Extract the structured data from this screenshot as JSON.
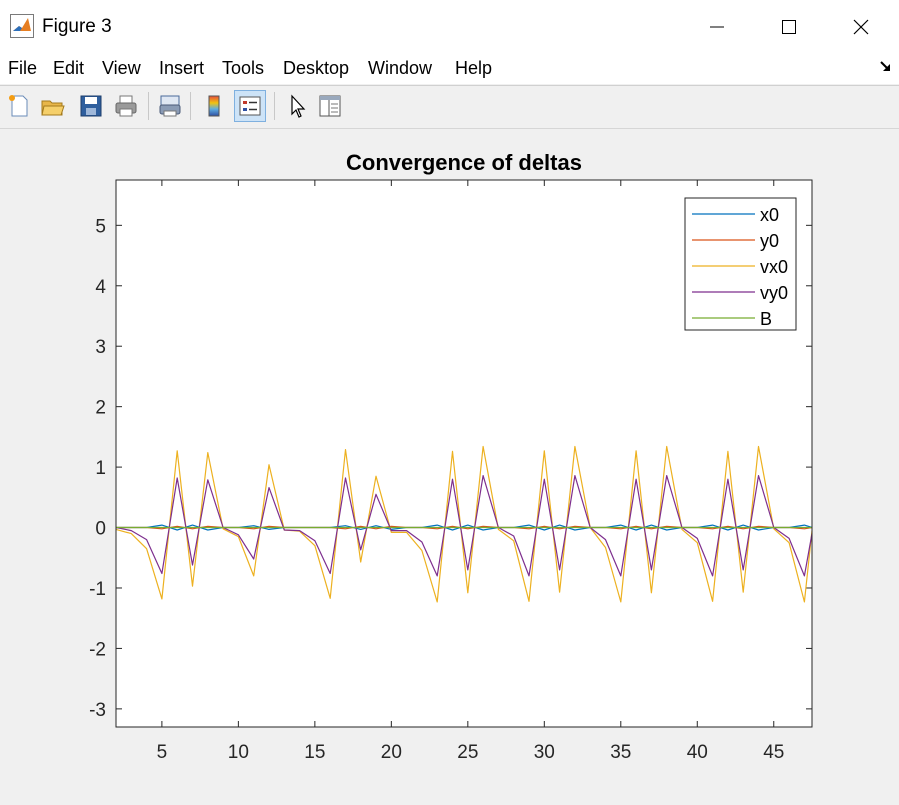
{
  "window": {
    "title": "Figure 3",
    "controls": {
      "minimize": "minimize-icon",
      "maximize": "maximize-icon",
      "close": "close-icon"
    }
  },
  "menu": {
    "items": [
      {
        "label": "File"
      },
      {
        "label": "Edit"
      },
      {
        "label": "View"
      },
      {
        "label": "Insert"
      },
      {
        "label": "Tools"
      },
      {
        "label": "Desktop"
      },
      {
        "label": "Window"
      },
      {
        "label": "Help"
      }
    ]
  },
  "toolbar": {
    "buttons": [
      {
        "icon": "new-figure-icon"
      },
      {
        "icon": "open-file-icon"
      },
      {
        "icon": "save-icon"
      },
      {
        "icon": "print-icon"
      },
      {
        "icon": "link-plot-icon"
      },
      {
        "icon": "colorbar-icon"
      },
      {
        "icon": "legend-icon",
        "active": true
      },
      {
        "icon": "edit-plot-icon"
      },
      {
        "icon": "property-inspector-icon"
      }
    ]
  },
  "chart_data": {
    "type": "line",
    "title": "Convergence of deltas",
    "xlabel": "",
    "ylabel": "",
    "xlim": [
      2,
      47.5
    ],
    "ylim": [
      -3.3,
      5.75
    ],
    "xticks": [
      5,
      10,
      15,
      20,
      25,
      30,
      35,
      40,
      45
    ],
    "yticks": [
      -3,
      -2,
      -1,
      0,
      1,
      2,
      3,
      4,
      5
    ],
    "grid": false,
    "legend_position": "top-right",
    "x": [
      2,
      3,
      4,
      5,
      6,
      7,
      8,
      9,
      10,
      11,
      12,
      13,
      14,
      15,
      16,
      17,
      18,
      19,
      20,
      21,
      22,
      23,
      24,
      25,
      26,
      27,
      28,
      29,
      30,
      31,
      32,
      33,
      34,
      35,
      36,
      37,
      38,
      39,
      40,
      41,
      42,
      43,
      44,
      45,
      46,
      47,
      47.5
    ],
    "series": [
      {
        "name": "x0",
        "color": "#0072bd",
        "values": [
          0,
          0,
          0,
          0.04,
          -0.04,
          0.04,
          -0.04,
          0,
          0,
          0.03,
          -0.03,
          0,
          0,
          0,
          0,
          0.03,
          -0.03,
          0.03,
          -0.03,
          0,
          0,
          0.04,
          -0.04,
          0.04,
          -0.04,
          0,
          0,
          0.04,
          -0.04,
          0.04,
          -0.04,
          0,
          0,
          0.04,
          -0.04,
          0.04,
          -0.04,
          0,
          0,
          0.04,
          -0.04,
          0.04,
          -0.04,
          0,
          0,
          0.04,
          0
        ]
      },
      {
        "name": "y0",
        "color": "#d95319",
        "values": [
          0,
          0,
          0,
          -0.02,
          0.02,
          -0.02,
          0.02,
          0,
          0,
          -0.02,
          0.02,
          0,
          0,
          0,
          0,
          -0.02,
          0.02,
          -0.02,
          0.02,
          0,
          0,
          -0.02,
          0.02,
          -0.02,
          0.02,
          0,
          0,
          -0.02,
          0.02,
          -0.02,
          0.02,
          0,
          0,
          -0.02,
          0.02,
          -0.02,
          0.02,
          0,
          0,
          -0.02,
          0.02,
          -0.02,
          0.02,
          0,
          0,
          -0.02,
          0
        ]
      },
      {
        "name": "vx0",
        "color": "#edb120",
        "values": [
          -0.03,
          -0.1,
          -0.35,
          -1.18,
          1.27,
          -0.97,
          1.24,
          -0.02,
          -0.15,
          -0.8,
          1.04,
          -0.04,
          -0.06,
          -0.3,
          -1.17,
          1.29,
          -0.57,
          0.85,
          -0.08,
          -0.08,
          -0.38,
          -1.23,
          1.26,
          -1.08,
          1.34,
          -0.03,
          -0.22,
          -1.22,
          1.27,
          -1.07,
          1.34,
          0,
          -0.33,
          -1.23,
          1.27,
          -1.08,
          1.34,
          -0.03,
          -0.25,
          -1.22,
          1.26,
          -1.07,
          1.34,
          -0.02,
          -0.25,
          -1.23,
          -0.05
        ]
      },
      {
        "name": "vy0",
        "color": "#7e2f8e",
        "values": [
          0,
          -0.05,
          -0.2,
          -0.76,
          0.82,
          -0.62,
          0.79,
          0,
          -0.12,
          -0.52,
          0.66,
          -0.04,
          -0.05,
          -0.22,
          -0.76,
          0.82,
          -0.37,
          0.55,
          -0.05,
          -0.05,
          -0.24,
          -0.8,
          0.8,
          -0.7,
          0.86,
          0,
          -0.14,
          -0.8,
          0.8,
          -0.7,
          0.86,
          0,
          -0.2,
          -0.8,
          0.8,
          -0.7,
          0.86,
          0,
          -0.18,
          -0.8,
          0.8,
          -0.7,
          0.86,
          0,
          -0.18,
          -0.8,
          -0.1
        ]
      },
      {
        "name": "B",
        "color": "#77ac30",
        "values": [
          0,
          0,
          0,
          0,
          0,
          0,
          0,
          0,
          0,
          0,
          0,
          0,
          0,
          0,
          0,
          0,
          0,
          0,
          0,
          0,
          0,
          0,
          0,
          0,
          0,
          0,
          0,
          0,
          0,
          0,
          0,
          0,
          0,
          0,
          0,
          0,
          0,
          0,
          0,
          0,
          0,
          0,
          0,
          0,
          0,
          0,
          0
        ]
      }
    ]
  }
}
